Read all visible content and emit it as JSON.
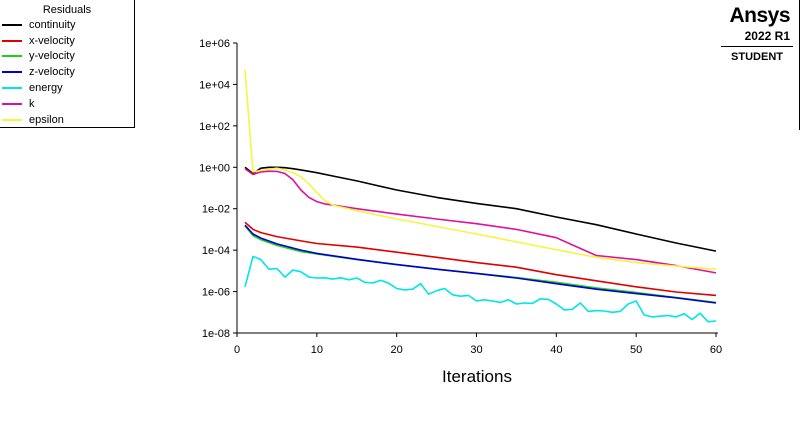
{
  "legend": {
    "title": "Residuals",
    "items": [
      {
        "label": "continuity",
        "color": "#000000"
      },
      {
        "label": "x-velocity",
        "color": "#e00000"
      },
      {
        "label": "y-velocity",
        "color": "#22cc22"
      },
      {
        "label": "z-velocity",
        "color": "#0000cc"
      },
      {
        "label": "energy",
        "color": "#00e5e5"
      },
      {
        "label": "k",
        "color": "#e0109a"
      },
      {
        "label": "epsilon",
        "color": "#f5f542"
      }
    ]
  },
  "brand": {
    "logo": "Ansys",
    "version": "2022 R1",
    "edition": "STUDENT"
  },
  "chart_data": {
    "type": "line",
    "xlabel": "Iterations",
    "ylabel": "",
    "xlim": [
      0,
      60
    ],
    "ylim": [
      1e-08,
      1000000.0
    ],
    "yscale": "log",
    "xticks": [
      0,
      10,
      20,
      30,
      40,
      50,
      60
    ],
    "yticks": [
      "1e-08",
      "1e-06",
      "1e-04",
      "1e-02",
      "1e+00",
      "1e+02",
      "1e+04",
      "1e+06"
    ],
    "grid": false,
    "legend_position": "top-left",
    "series": [
      {
        "name": "continuity",
        "color": "#000000",
        "x": [
          1,
          2,
          3,
          4,
          5,
          6,
          7,
          8,
          10,
          12,
          15,
          20,
          25,
          30,
          35,
          40,
          45,
          50,
          55,
          60
        ],
        "y": [
          1.0,
          0.5,
          0.9,
          1.0,
          1.0,
          0.95,
          0.85,
          0.75,
          0.55,
          0.38,
          0.22,
          0.08,
          0.035,
          0.018,
          0.01,
          0.004,
          0.0017,
          0.0006,
          0.00022,
          9e-05
        ]
      },
      {
        "name": "x-velocity",
        "color": "#e00000",
        "x": [
          1,
          2,
          3,
          5,
          8,
          10,
          15,
          20,
          25,
          30,
          35,
          40,
          45,
          50,
          55,
          60
        ],
        "y": [
          0.0022,
          0.001,
          0.0007,
          0.00045,
          0.00028,
          0.00021,
          0.00014,
          8e-05,
          4.5e-05,
          2.5e-05,
          1.5e-05,
          6.5e-06,
          3.3e-06,
          1.7e-06,
          9.5e-07,
          6.5e-07
        ]
      },
      {
        "name": "y-velocity",
        "color": "#22cc22",
        "x": [
          1,
          2,
          3,
          5,
          8,
          10,
          15,
          20,
          25,
          30,
          35,
          40,
          45,
          50,
          55,
          60
        ],
        "y": [
          0.0015,
          0.0005,
          0.00032,
          0.00017,
          8.5e-05,
          6.5e-05,
          3.5e-05,
          2e-05,
          1.2e-05,
          7.5e-06,
          4.8e-06,
          2.8e-06,
          1.5e-06,
          9e-07,
          5.2e-07,
          3e-07
        ]
      },
      {
        "name": "z-velocity",
        "color": "#0000cc",
        "x": [
          1,
          2,
          3,
          5,
          8,
          10,
          15,
          20,
          25,
          30,
          35,
          40,
          45,
          50,
          55,
          60
        ],
        "y": [
          0.0016,
          0.0006,
          0.00038,
          0.0002,
          0.0001,
          7e-05,
          3.6e-05,
          2e-05,
          1.2e-05,
          7.5e-06,
          4.5e-06,
          2.4e-06,
          1.3e-06,
          8e-07,
          5e-07,
          2.8e-07
        ]
      },
      {
        "name": "energy",
        "color": "#00e5e5",
        "x": [
          1,
          2,
          3,
          4,
          5,
          6,
          7,
          8,
          9,
          10,
          11,
          12,
          13,
          14,
          15,
          16,
          17,
          18,
          19,
          20,
          21,
          22,
          23,
          24,
          25,
          26,
          27,
          28,
          29,
          30,
          31,
          32,
          33,
          34,
          35,
          36,
          37,
          38,
          39,
          40,
          41,
          42,
          43,
          44,
          45,
          46,
          47,
          48,
          49,
          50,
          51,
          52,
          53,
          54,
          55,
          56,
          57,
          58,
          59,
          60
        ],
        "y": [
          1.7e-06,
          5e-05,
          3.5e-05,
          1.2e-05,
          1.3e-05,
          5e-06,
          1.1e-05,
          9e-06,
          5e-06,
          4.5e-06,
          4.6e-06,
          4e-06,
          4.6e-06,
          3.7e-06,
          4.5e-06,
          2.8e-06,
          2.6e-06,
          3.5e-06,
          2.5e-06,
          1.4e-06,
          1.2e-06,
          1.3e-06,
          2.4e-06,
          7.5e-07,
          1.1e-06,
          1.4e-06,
          7e-07,
          6e-07,
          6.5e-07,
          3.5e-07,
          4e-07,
          3.5e-07,
          3e-07,
          4e-07,
          2.5e-07,
          2.8e-07,
          2.7e-07,
          4.5e-07,
          4.2e-07,
          2.5e-07,
          1.3e-07,
          1.4e-07,
          2.8e-07,
          1.1e-07,
          1.2e-07,
          1.15e-07,
          1e-07,
          1.1e-07,
          2.5e-07,
          3.5e-07,
          7.5e-08,
          6e-08,
          6.5e-08,
          7e-08,
          6e-08,
          8.5e-08,
          4.5e-08,
          9e-08,
          3.5e-08,
          3.8e-08
        ]
      },
      {
        "name": "k",
        "color": "#e0109a",
        "x": [
          1,
          2,
          3,
          4,
          5,
          6,
          7,
          8,
          9,
          10,
          11,
          12,
          15,
          20,
          25,
          30,
          35,
          40,
          42,
          45,
          50,
          55,
          60
        ],
        "y": [
          0.85,
          0.45,
          0.6,
          0.65,
          0.63,
          0.5,
          0.25,
          0.08,
          0.035,
          0.022,
          0.017,
          0.015,
          0.01,
          0.0055,
          0.0032,
          0.0019,
          0.001,
          0.0004,
          0.00018,
          5.5e-05,
          3.5e-05,
          1.8e-05,
          8e-06
        ]
      },
      {
        "name": "epsilon",
        "color": "#f5f542",
        "x": [
          1,
          2,
          3,
          4,
          5,
          6,
          7,
          8,
          9,
          10,
          11,
          12,
          15,
          20,
          25,
          30,
          35,
          40,
          45,
          50,
          55,
          60
        ],
        "y": [
          50000,
          0.6,
          0.7,
          0.8,
          0.9,
          0.75,
          0.55,
          0.35,
          0.16,
          0.06,
          0.025,
          0.015,
          0.008,
          0.0032,
          0.0014,
          0.0006,
          0.00025,
          0.000105,
          4.5e-05,
          2.5e-05,
          1.7e-05,
          1.2e-05
        ]
      }
    ]
  }
}
